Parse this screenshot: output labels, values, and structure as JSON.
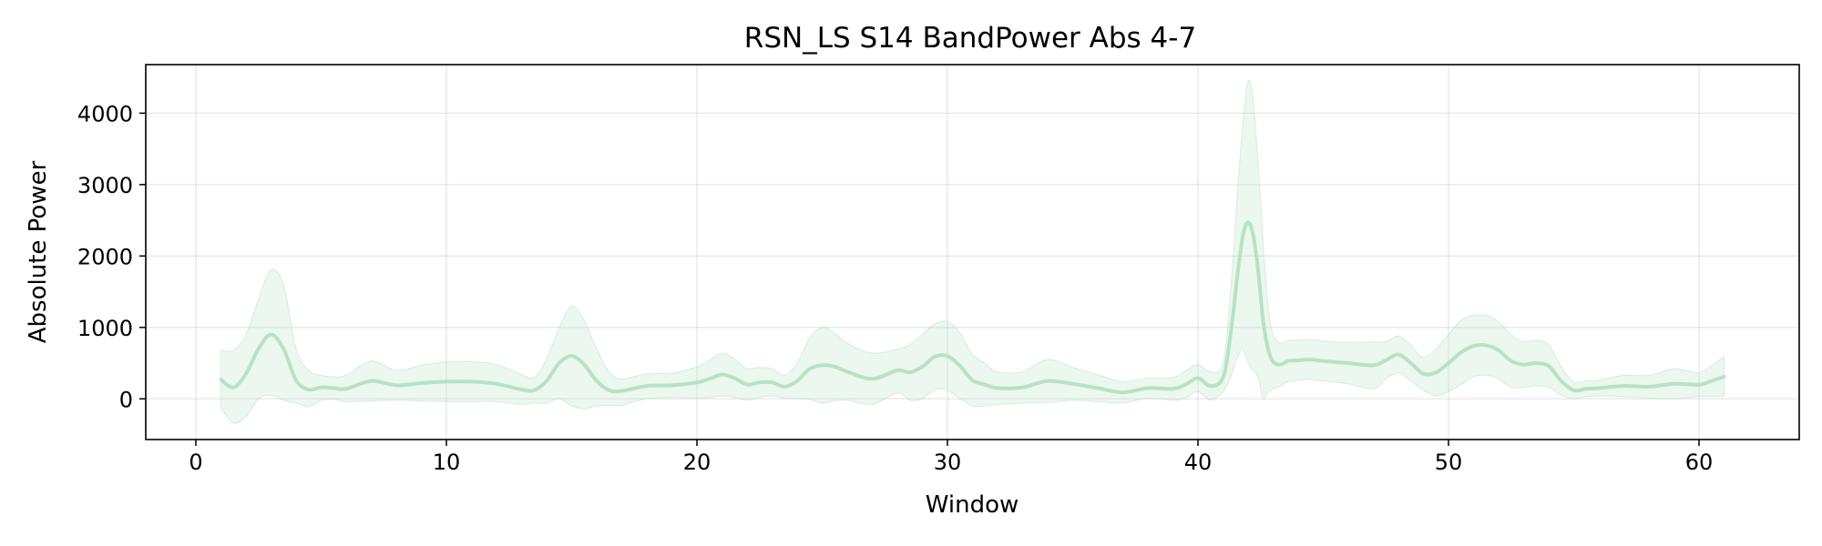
{
  "chart_data": {
    "type": "line",
    "title": "RSN_LS S14 BandPower Abs 4-7",
    "xlabel": "Window",
    "ylabel": "Absolute Power",
    "xlim": [
      -2,
      64
    ],
    "ylim": [
      -570,
      4680
    ],
    "x_ticks": [
      0,
      10,
      20,
      30,
      40,
      50,
      60
    ],
    "y_ticks": [
      0,
      1000,
      2000,
      3000,
      4000
    ],
    "grid": true,
    "line_color": "#b7e2c5",
    "band_color": "#b7e2c5",
    "series": [
      {
        "x": [
          1,
          1.5,
          2,
          2.5,
          3,
          3.5,
          4,
          4.5,
          5,
          5.5,
          6,
          7,
          8,
          9,
          10,
          11,
          12,
          13,
          13.5,
          14,
          14.5,
          15,
          15.5,
          16,
          16.5,
          17,
          18,
          19,
          20,
          20.5,
          21,
          21.5,
          22,
          22.5,
          23,
          23.5,
          24,
          24.5,
          25,
          25.5,
          26,
          27,
          28,
          28.5,
          29,
          29.5,
          30,
          30.5,
          31,
          31.5,
          32,
          33,
          34,
          35,
          36,
          37,
          38,
          39,
          39.5,
          40,
          40.5,
          41,
          41.3,
          41.6,
          41.8,
          42,
          42.2,
          42.4,
          42.6,
          42.8,
          43,
          43.3,
          43.6,
          44,
          44.5,
          45,
          46,
          47,
          47.5,
          48,
          48.5,
          49,
          49.5,
          50,
          50.5,
          51,
          51.5,
          52,
          52.5,
          53,
          53.5,
          54,
          54.5,
          55,
          55.5,
          56,
          57,
          58,
          59,
          60,
          60.5,
          61
        ],
        "mean": [
          270,
          160,
          350,
          700,
          900,
          700,
          260,
          130,
          160,
          150,
          140,
          250,
          190,
          220,
          240,
          240,
          210,
          130,
          120,
          250,
          500,
          600,
          480,
          250,
          120,
          110,
          180,
          190,
          230,
          280,
          340,
          290,
          200,
          230,
          230,
          170,
          250,
          420,
          470,
          450,
          380,
          280,
          400,
          370,
          450,
          590,
          600,
          460,
          260,
          200,
          150,
          160,
          250,
          210,
          150,
          90,
          150,
          140,
          200,
          290,
          180,
          300,
          900,
          1800,
          2300,
          2470,
          2300,
          1800,
          1100,
          700,
          520,
          480,
          530,
          540,
          550,
          530,
          500,
          470,
          540,
          620,
          500,
          350,
          370,
          500,
          650,
          740,
          750,
          680,
          530,
          480,
          500,
          460,
          250,
          120,
          140,
          150,
          180,
          170,
          210,
          200,
          250,
          310
        ],
        "upper": [
          680,
          680,
          900,
          1400,
          1800,
          1600,
          700,
          400,
          330,
          310,
          330,
          530,
          400,
          470,
          520,
          520,
          480,
          340,
          300,
          560,
          1000,
          1300,
          1100,
          700,
          380,
          280,
          350,
          360,
          450,
          540,
          640,
          560,
          420,
          440,
          420,
          330,
          500,
          850,
          1000,
          920,
          780,
          640,
          700,
          760,
          900,
          1050,
          1080,
          920,
          620,
          500,
          380,
          380,
          550,
          440,
          340,
          240,
          290,
          300,
          390,
          480,
          380,
          500,
          1500,
          3000,
          3900,
          4450,
          4200,
          3300,
          2200,
          1300,
          900,
          780,
          820,
          820,
          830,
          810,
          790,
          800,
          800,
          880,
          750,
          580,
          700,
          900,
          1100,
          1170,
          1170,
          1080,
          900,
          800,
          820,
          760,
          450,
          240,
          250,
          260,
          330,
          330,
          420,
          370,
          470,
          590
        ],
        "lower": [
          -130,
          -340,
          -250,
          0,
          50,
          -20,
          -60,
          -110,
          -20,
          -10,
          -40,
          -30,
          -20,
          -30,
          -40,
          -40,
          -40,
          -80,
          -60,
          -60,
          0,
          -100,
          -140,
          -100,
          -90,
          -90,
          0,
          20,
          10,
          20,
          40,
          20,
          -20,
          20,
          40,
          10,
          0,
          -10,
          -60,
          -30,
          -20,
          -80,
          80,
          -20,
          0,
          130,
          120,
          0,
          -100,
          -100,
          -80,
          -60,
          -50,
          -20,
          -40,
          -60,
          10,
          -20,
          10,
          100,
          -20,
          100,
          300,
          600,
          700,
          500,
          400,
          300,
          0,
          100,
          140,
          180,
          240,
          260,
          270,
          250,
          210,
          140,
          280,
          360,
          250,
          120,
          40,
          100,
          200,
          310,
          330,
          280,
          160,
          160,
          180,
          160,
          50,
          0,
          30,
          40,
          30,
          10,
          0,
          30,
          30,
          30
        ]
      }
    ]
  }
}
